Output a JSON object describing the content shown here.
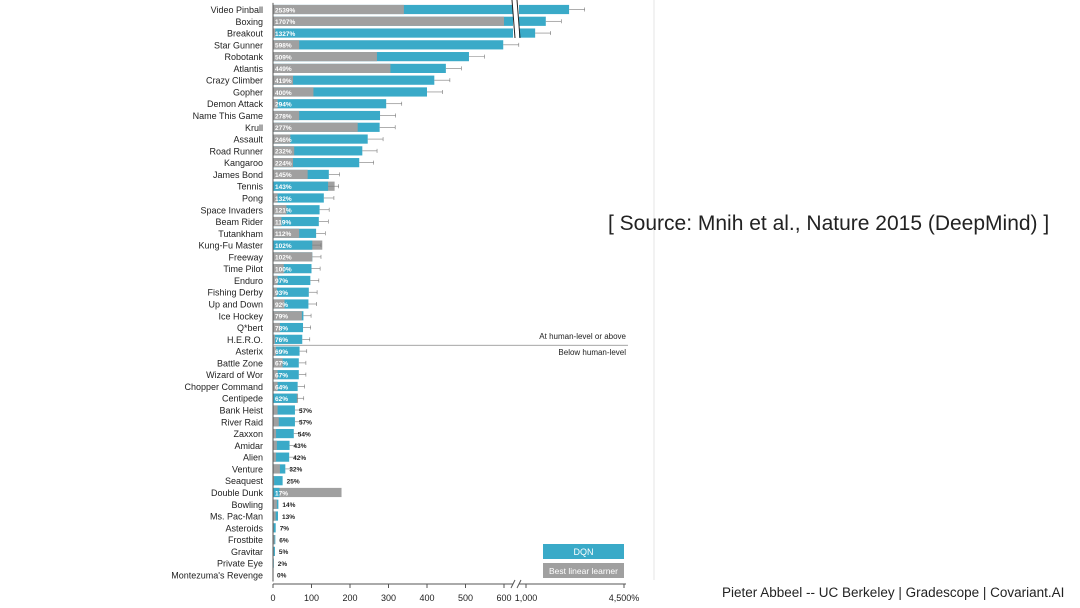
{
  "slide": {
    "source_text": "[ Source: Mnih et al., Nature 2015 (DeepMind) ]",
    "footer_text": "Pieter Abbeel -- UC Berkeley | Gradescope | Covariant.AI"
  },
  "colors": {
    "dqn": "#3AAAC8",
    "linear": "#A0A0A0",
    "divider": "#888888",
    "axis": "#555555",
    "text": "#222222"
  },
  "chart_data": {
    "type": "bar",
    "orientation": "horizontal",
    "x_ticks": [
      "0",
      "100",
      "200",
      "300",
      "400",
      "500",
      "600",
      "1,000",
      "4,500%"
    ],
    "x_tick_values": [
      0,
      100,
      200,
      300,
      400,
      500,
      600,
      1000,
      4500
    ],
    "axis_break_between": [
      600,
      1000
    ],
    "legend": [
      {
        "name": "DQN",
        "color": "#3AAAC8"
      },
      {
        "name": "Best linear learner",
        "color": "#A0A0A0"
      }
    ],
    "legend_position": "bottom-right",
    "annotations": {
      "above": "At human-level or above",
      "below": "Below human-level"
    },
    "divider_after_game": "H.E.R.O.",
    "games": [
      {
        "name": "Video Pinball",
        "dqn": 2539,
        "linear": 340,
        "label": "2539%"
      },
      {
        "name": "Boxing",
        "dqn": 1707,
        "linear": 600,
        "label": "1707%"
      },
      {
        "name": "Breakout",
        "dqn": 1327,
        "linear": 6,
        "label": "1327%"
      },
      {
        "name": "Star Gunner",
        "dqn": 598,
        "linear": 68,
        "label": "598%"
      },
      {
        "name": "Robotank",
        "dqn": 509,
        "linear": 270,
        "label": "509%"
      },
      {
        "name": "Atlantis",
        "dqn": 449,
        "linear": 305,
        "label": "449%"
      },
      {
        "name": "Crazy Climber",
        "dqn": 419,
        "linear": 52,
        "label": "419%"
      },
      {
        "name": "Gopher",
        "dqn": 400,
        "linear": 105,
        "label": "400%"
      },
      {
        "name": "Demon Attack",
        "dqn": 294,
        "linear": 12,
        "label": "294%"
      },
      {
        "name": "Name This Game",
        "dqn": 278,
        "linear": 68,
        "label": "278%"
      },
      {
        "name": "Krull",
        "dqn": 277,
        "linear": 220,
        "label": "277%"
      },
      {
        "name": "Assault",
        "dqn": 246,
        "linear": 45,
        "label": "246%"
      },
      {
        "name": "Road Runner",
        "dqn": 232,
        "linear": 55,
        "label": "232%"
      },
      {
        "name": "Kangaroo",
        "dqn": 224,
        "linear": 52,
        "label": "224%"
      },
      {
        "name": "James Bond",
        "dqn": 145,
        "linear": 90,
        "label": "145%"
      },
      {
        "name": "Tennis",
        "dqn": 143,
        "linear": 160,
        "label": "143%"
      },
      {
        "name": "Pong",
        "dqn": 132,
        "linear": 12,
        "label": "132%"
      },
      {
        "name": "Space Invaders",
        "dqn": 121,
        "linear": 35,
        "label": "121%"
      },
      {
        "name": "Beam Rider",
        "dqn": 119,
        "linear": 22,
        "label": "119%"
      },
      {
        "name": "Tutankham",
        "dqn": 112,
        "linear": 68,
        "label": "112%"
      },
      {
        "name": "Kung-Fu Master",
        "dqn": 102,
        "linear": 128,
        "label": "102%"
      },
      {
        "name": "Freeway",
        "dqn": 102,
        "linear": 102,
        "label": "102%"
      },
      {
        "name": "Time Pilot",
        "dqn": 100,
        "linear": 28,
        "label": "100%"
      },
      {
        "name": "Enduro",
        "dqn": 97,
        "linear": 12,
        "label": "97%"
      },
      {
        "name": "Fishing Derby",
        "dqn": 93,
        "linear": 10,
        "label": "93%"
      },
      {
        "name": "Up and Down",
        "dqn": 92,
        "linear": 30,
        "label": "92%"
      },
      {
        "name": "Ice Hockey",
        "dqn": 79,
        "linear": 75,
        "label": "79%"
      },
      {
        "name": "Q*bert",
        "dqn": 78,
        "linear": 18,
        "label": "78%"
      },
      {
        "name": "H.E.R.O.",
        "dqn": 76,
        "linear": 5,
        "label": "76%"
      },
      {
        "name": "Asterix",
        "dqn": 69,
        "linear": 8,
        "label": "69%"
      },
      {
        "name": "Battle Zone",
        "dqn": 67,
        "linear": 25,
        "label": "67%"
      },
      {
        "name": "Wizard of Wor",
        "dqn": 67,
        "linear": 12,
        "label": "67%"
      },
      {
        "name": "Chopper Command",
        "dqn": 64,
        "linear": 12,
        "label": "64%"
      },
      {
        "name": "Centipede",
        "dqn": 62,
        "linear": 65,
        "label": "62%"
      },
      {
        "name": "Bank Heist",
        "dqn": 57,
        "linear": 12,
        "label": "57%"
      },
      {
        "name": "River Raid",
        "dqn": 57,
        "linear": 15,
        "label": "57%"
      },
      {
        "name": "Zaxxon",
        "dqn": 54,
        "linear": 8,
        "label": "54%"
      },
      {
        "name": "Amidar",
        "dqn": 43,
        "linear": 10,
        "label": "43%"
      },
      {
        "name": "Alien",
        "dqn": 42,
        "linear": 8,
        "label": "42%"
      },
      {
        "name": "Venture",
        "dqn": 32,
        "linear": 18,
        "label": "32%"
      },
      {
        "name": "Seaquest",
        "dqn": 25,
        "linear": 3,
        "label": "25%"
      },
      {
        "name": "Double Dunk",
        "dqn": 17,
        "linear": 178,
        "label": "17%"
      },
      {
        "name": "Bowling",
        "dqn": 14,
        "linear": 10,
        "label": "14%"
      },
      {
        "name": "Ms. Pac-Man",
        "dqn": 13,
        "linear": 7,
        "label": "13%"
      },
      {
        "name": "Asteroids",
        "dqn": 7,
        "linear": 2,
        "label": "7%"
      },
      {
        "name": "Frostbite",
        "dqn": 6,
        "linear": 4,
        "label": "6%"
      },
      {
        "name": "Gravitar",
        "dqn": 5,
        "linear": 2,
        "label": "5%"
      },
      {
        "name": "Private Eye",
        "dqn": 2,
        "linear": 1,
        "label": "2%"
      },
      {
        "name": "Montezuma's Revenge",
        "dqn": 0,
        "linear": 0,
        "label": "0%"
      }
    ]
  }
}
